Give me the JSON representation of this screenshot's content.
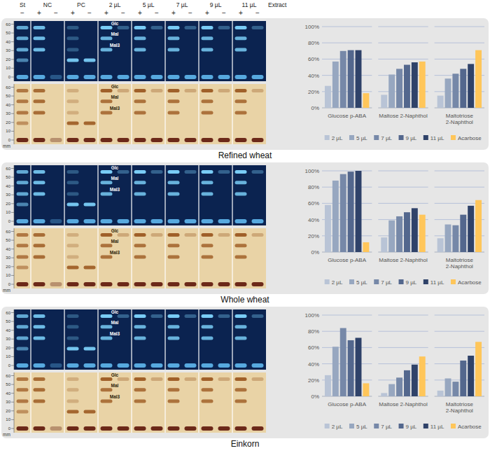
{
  "plates": {
    "columns": [
      {
        "label": "St",
        "lanes": [
          "−"
        ]
      },
      {
        "label": "NC",
        "lanes": [
          "+",
          "−"
        ]
      },
      {
        "label": "PC",
        "lanes": [
          "+",
          "−"
        ]
      },
      {
        "label": "2 µL",
        "lanes": [
          "+",
          "−"
        ]
      },
      {
        "label": "5 µL",
        "lanes": [
          "+",
          "−"
        ]
      },
      {
        "label": "7 µL",
        "lanes": [
          "+",
          "−"
        ]
      },
      {
        "label": "9 µL",
        "lanes": [
          "+",
          "−"
        ]
      },
      {
        "label": "11 µL",
        "lanes": [
          "+",
          "−"
        ]
      }
    ],
    "extract_label": "Extract",
    "axis": {
      "label": "mm",
      "lim": [
        0,
        62
      ],
      "ticks": [
        0,
        10,
        20,
        30,
        40,
        50,
        60
      ]
    },
    "bands": [
      {
        "label": "Glc",
        "mm": 56
      },
      {
        "label": "Mal",
        "mm": 44
      },
      {
        "label": "Mal3",
        "mm": 31
      }
    ],
    "pc_band_mm": 19
  },
  "chart_data": [
    {
      "type": "bar",
      "title": "Refined wheat",
      "categories": [
        "Glucose p-ABA",
        "Maltose 2-Naphthol",
        "Maltotriose 2-Naphthol"
      ],
      "series": [
        {
          "name": "2 µL",
          "color": "#b9c4d6",
          "values": [
            27,
            16,
            15
          ]
        },
        {
          "name": "5 µL",
          "color": "#97a7c0",
          "values": [
            57,
            41,
            36
          ]
        },
        {
          "name": "7 µL",
          "color": "#7688a8",
          "values": [
            70,
            48,
            42
          ]
        },
        {
          "name": "9 µL",
          "color": "#53678d",
          "values": [
            71,
            53,
            48
          ]
        },
        {
          "name": "11 µL",
          "color": "#2f4269",
          "values": [
            71,
            56,
            54
          ]
        },
        {
          "name": "Acarbose",
          "color": "#ffc65a",
          "values": [
            18,
            57,
            71
          ]
        }
      ],
      "ylim": [
        0,
        100
      ],
      "yticks": [
        {
          "value": 0,
          "label": "0%"
        },
        {
          "value": 20,
          "label": "20%"
        },
        {
          "value": 40,
          "label": "40%"
        },
        {
          "value": 60,
          "label": "60%"
        },
        {
          "value": 80,
          "label": "80%"
        },
        {
          "value": 100,
          "label": "100%"
        }
      ],
      "grid": true,
      "legend": "bottom"
    },
    {
      "type": "bar",
      "title": "Whole wheat",
      "categories": [
        "Glucose p-ABA",
        "Maltose 2-Naphthol",
        "Maltotriose 2-Naphthol"
      ],
      "series": [
        {
          "name": "2 µL",
          "color": "#b9c4d6",
          "values": [
            58,
            18,
            17
          ]
        },
        {
          "name": "5 µL",
          "color": "#97a7c0",
          "values": [
            88,
            39,
            34
          ]
        },
        {
          "name": "7 µL",
          "color": "#7688a8",
          "values": [
            96,
            44,
            33
          ]
        },
        {
          "name": "9 µL",
          "color": "#53678d",
          "values": [
            99,
            49,
            46
          ]
        },
        {
          "name": "11 µL",
          "color": "#2f4269",
          "values": [
            100,
            54,
            57
          ]
        },
        {
          "name": "Acarbose",
          "color": "#ffc65a",
          "values": [
            12,
            46,
            64
          ]
        }
      ],
      "ylim": [
        0,
        100
      ],
      "yticks": [
        {
          "value": 0,
          "label": "0%"
        },
        {
          "value": 20,
          "label": "20%"
        },
        {
          "value": 40,
          "label": "40%"
        },
        {
          "value": 60,
          "label": "60%"
        },
        {
          "value": 80,
          "label": "80%"
        },
        {
          "value": 100,
          "label": "100%"
        }
      ],
      "grid": true,
      "legend": "bottom"
    },
    {
      "type": "bar",
      "title": "Einkorn",
      "categories": [
        "Glucose p-ABA",
        "Maltose 2-Naphthol",
        "Maltotriose 2-Naphthol"
      ],
      "series": [
        {
          "name": "2 µL",
          "color": "#b9c4d6",
          "values": [
            26,
            4,
            7
          ]
        },
        {
          "name": "5 µL",
          "color": "#97a7c0",
          "values": [
            61,
            15,
            22
          ]
        },
        {
          "name": "7 µL",
          "color": "#7688a8",
          "values": [
            84,
            23,
            18
          ]
        },
        {
          "name": "9 µL",
          "color": "#53678d",
          "values": [
            69,
            32,
            44
          ]
        },
        {
          "name": "11 µL",
          "color": "#2f4269",
          "values": [
            72,
            39,
            50
          ]
        },
        {
          "name": "Acarbose",
          "color": "#ffc65a",
          "values": [
            16,
            49,
            67
          ]
        }
      ],
      "ylim": [
        0,
        100
      ],
      "yticks": [
        {
          "value": 0,
          "label": "0%"
        },
        {
          "value": 20,
          "label": "20%"
        },
        {
          "value": 40,
          "label": "40%"
        },
        {
          "value": 60,
          "label": "60%"
        },
        {
          "value": 80,
          "label": "80%"
        },
        {
          "value": 100,
          "label": "100%"
        }
      ],
      "grid": true,
      "legend": "bottom"
    }
  ]
}
